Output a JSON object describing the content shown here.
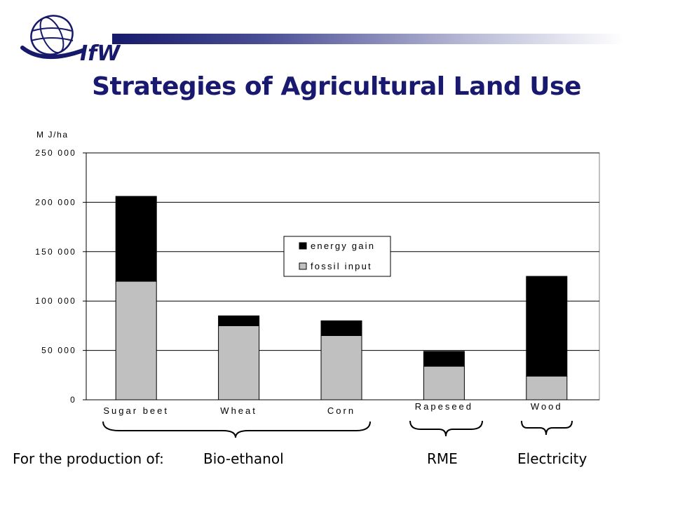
{
  "header": {
    "logo_text": "IfW",
    "title": "Strategies of Agricultural Land Use"
  },
  "colors": {
    "brand_navy": "#191970",
    "energy_gain": "#000000",
    "fossil_input": "#c0c0c0"
  },
  "chart_data": {
    "type": "bar",
    "stacked": true,
    "ylabel": "M J/ha",
    "ylim": [
      0,
      250000
    ],
    "yticks": [
      0,
      50000,
      100000,
      150000,
      200000,
      250000
    ],
    "ytick_labels": [
      "0",
      "50 000",
      "100 000",
      "150 000",
      "200 000",
      "250 000"
    ],
    "grid": true,
    "legend_position": "center",
    "categories": [
      "Sugar beet",
      "Wheat",
      "Corn",
      "Rapeseed",
      "Wood"
    ],
    "series": [
      {
        "name": "fossil input",
        "values": [
          120000,
          75000,
          65000,
          34000,
          24000
        ]
      },
      {
        "name": "energy gain",
        "values": [
          86000,
          10000,
          15000,
          15000,
          101000
        ]
      }
    ]
  },
  "footer": {
    "intro": "For the production of:",
    "groups": [
      "Bio-ethanol",
      "RME",
      "Electricity"
    ]
  }
}
